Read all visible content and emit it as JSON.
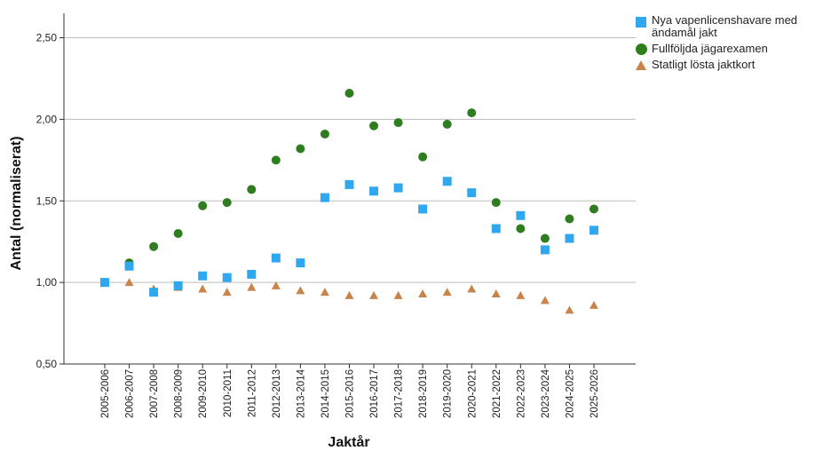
{
  "chart_data": {
    "type": "scatter",
    "xlabel": "Jaktår",
    "ylabel": "Antal (normaliserat)",
    "ylim": [
      0.5,
      2.65
    ],
    "yticks": [
      "0,50",
      "1,00",
      "1,50",
      "2,00",
      "2,50"
    ],
    "ytick_values": [
      0.5,
      1.0,
      1.5,
      2.0,
      2.5
    ],
    "grid": "horizontal",
    "legend_position": "top-right",
    "categories": [
      "2005-2006",
      "2006-2007",
      "2007-2008",
      "2008-2009",
      "2009-2010",
      "2010-2011",
      "2011-2012",
      "2012-2013",
      "2013-2014",
      "2014-2015",
      "2015-2016",
      "2016-2017",
      "2017-2018",
      "2018-2019",
      "2019-2020",
      "2020-2021",
      "2021-2022",
      "2022-2023",
      "2023-2024",
      "2024-2025",
      "2025-2026"
    ],
    "series": [
      {
        "name": "Nya vapenlicenshavare med ändamål jakt",
        "marker": "square",
        "color": "#2fa8f0",
        "values": [
          1.0,
          1.1,
          0.94,
          0.98,
          1.04,
          1.03,
          1.05,
          1.15,
          1.12,
          1.52,
          1.6,
          1.56,
          1.58,
          1.45,
          1.62,
          1.55,
          1.33,
          1.41,
          1.2,
          1.27,
          1.32
        ]
      },
      {
        "name": "Fullföljda jägarexamen",
        "marker": "circle",
        "color": "#2e7d1f",
        "values": [
          1.0,
          1.12,
          1.22,
          1.3,
          1.47,
          1.49,
          1.57,
          1.75,
          1.82,
          1.91,
          2.16,
          1.96,
          1.98,
          1.77,
          1.97,
          2.04,
          1.49,
          1.33,
          1.27,
          1.39,
          1.45
        ]
      },
      {
        "name": "Statligt lösta jaktkort",
        "marker": "triangle",
        "color": "#c8844a",
        "values": [
          1.0,
          1.0,
          0.96,
          0.97,
          0.96,
          0.94,
          0.97,
          0.98,
          0.95,
          0.94,
          0.92,
          0.92,
          0.92,
          0.93,
          0.94,
          0.96,
          0.93,
          0.92,
          0.89,
          0.83,
          0.86
        ]
      }
    ]
  }
}
